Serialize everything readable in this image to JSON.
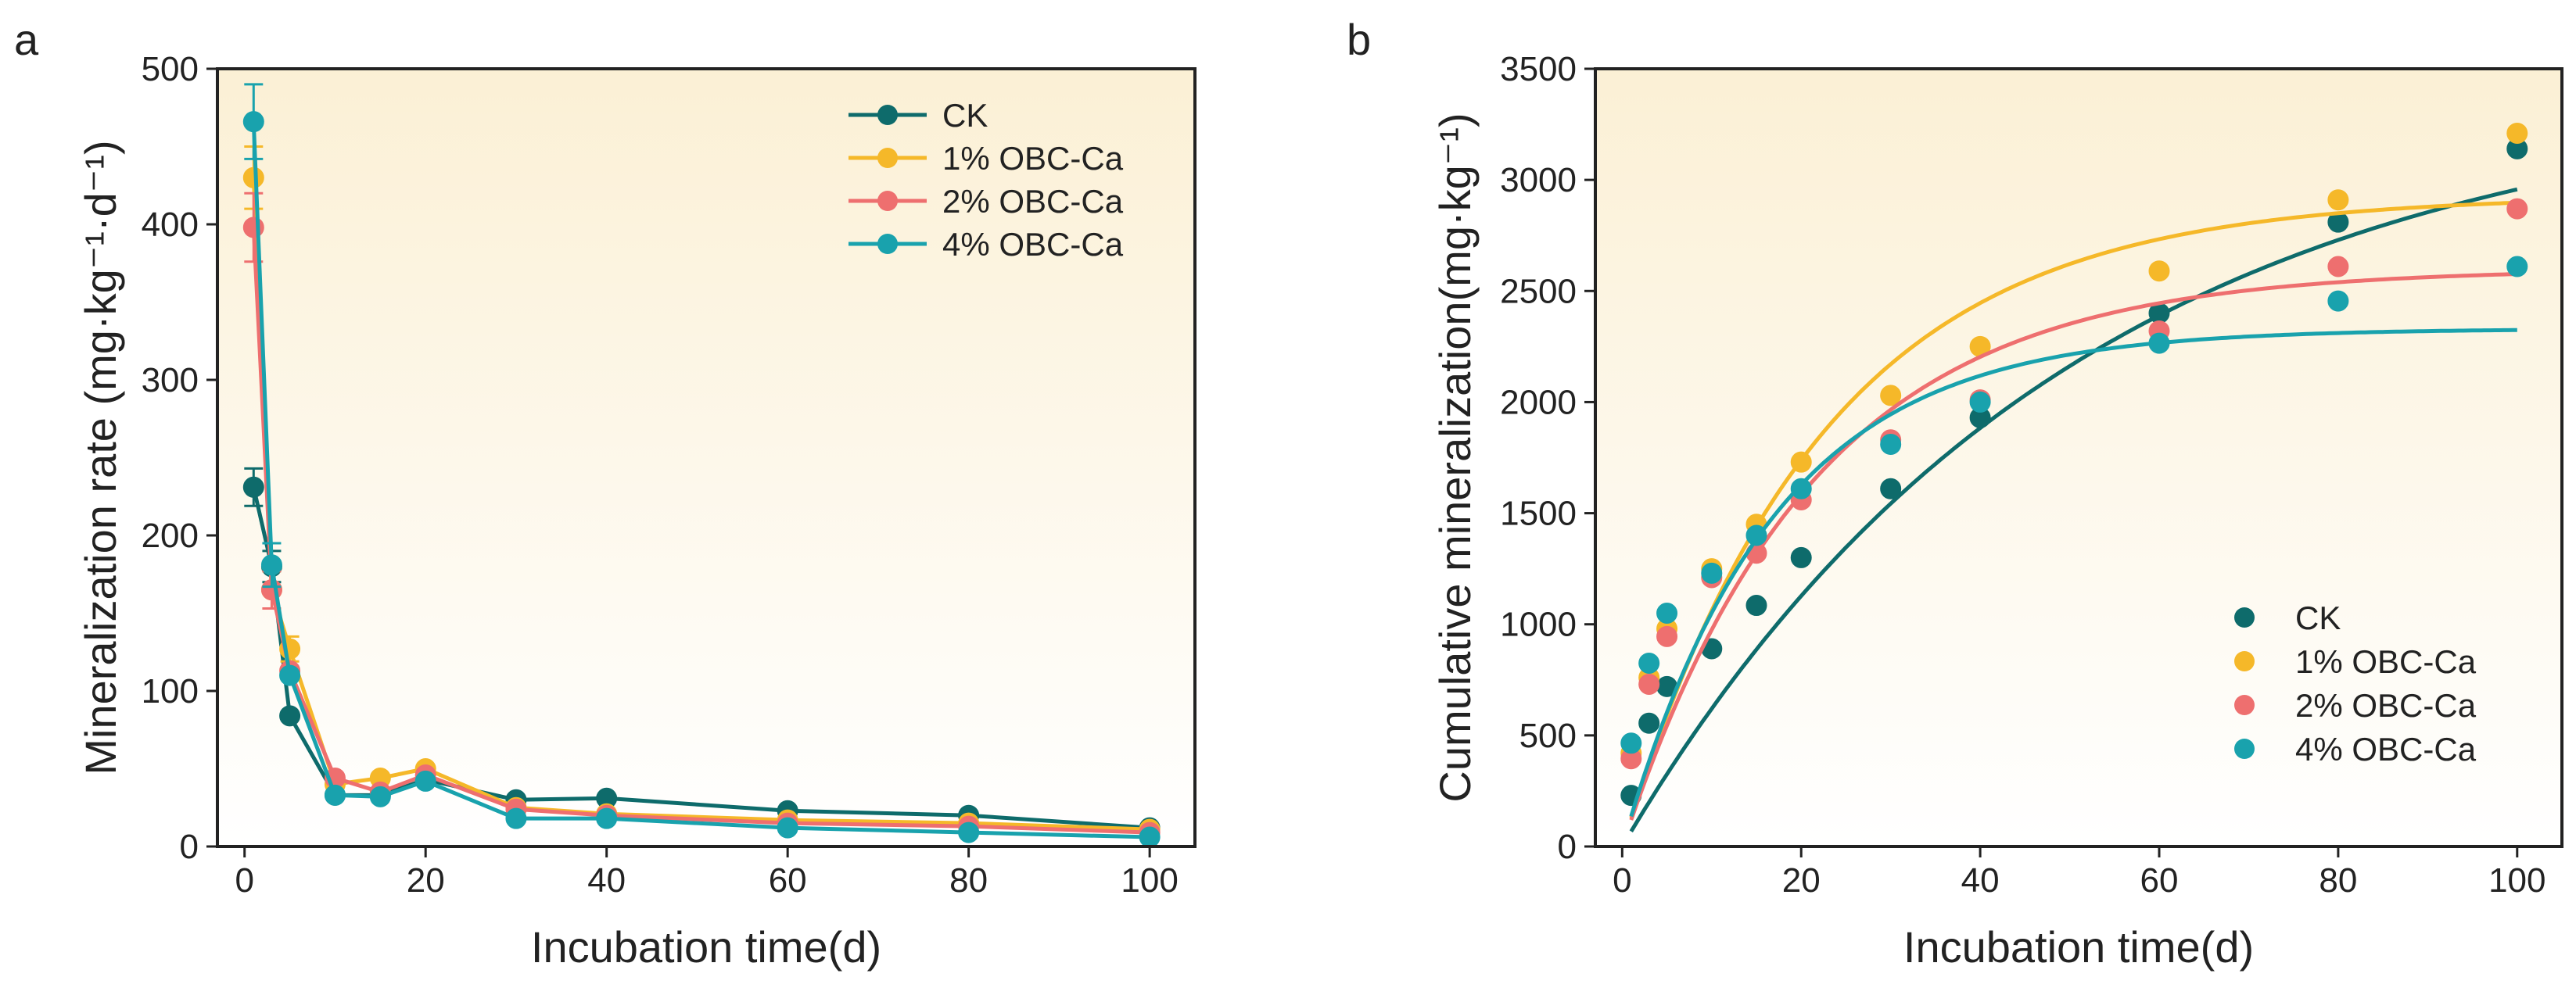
{
  "colors": {
    "CK": "#0e6b6b",
    "OBC1": "#f5b829",
    "OBC2": "#ee6f6f",
    "OBC4": "#19a2ad",
    "axis": "#222222",
    "bg_top": "#fbf0d5",
    "bg_bottom": "#ffffff"
  },
  "chart_data": [
    {
      "panel_label": "a",
      "type": "line",
      "title": "",
      "xlabel": "Incubation time(d)",
      "ylabel": "Mineralization rate (mg·kg⁻¹·d⁻¹)",
      "xlim": [
        -3,
        105
      ],
      "ylim": [
        0,
        500
      ],
      "xticks": [
        0,
        20,
        40,
        60,
        80,
        100
      ],
      "yticks": [
        0,
        100,
        200,
        300,
        400,
        500
      ],
      "legend_position": "top-right",
      "x": [
        1,
        3,
        5,
        10,
        15,
        20,
        30,
        40,
        60,
        80,
        100
      ],
      "series": [
        {
          "name": "CK",
          "color_key": "CK",
          "values": [
            231,
            180,
            84,
            33,
            33,
            43,
            30,
            31,
            23,
            20,
            12
          ],
          "error": [
            12,
            10,
            0,
            0,
            0,
            0,
            0,
            0,
            0,
            0,
            0
          ]
        },
        {
          "name": "1% OBC-Ca",
          "color_key": "OBC1",
          "values": [
            430,
            165,
            127,
            40,
            44,
            50,
            25,
            21,
            17,
            15,
            11
          ],
          "error": [
            20,
            12,
            8,
            0,
            0,
            0,
            0,
            0,
            0,
            0,
            0
          ]
        },
        {
          "name": "2% OBC-Ca",
          "color_key": "OBC2",
          "values": [
            398,
            165,
            113,
            44,
            35,
            46,
            24,
            20,
            15,
            13,
            9
          ],
          "error": [
            22,
            12,
            0,
            0,
            0,
            0,
            0,
            0,
            0,
            0,
            0
          ]
        },
        {
          "name": "4% OBC-Ca",
          "color_key": "OBC4",
          "values": [
            466,
            181,
            110,
            33,
            32,
            42,
            18,
            18,
            12,
            9,
            6
          ],
          "error": [
            24,
            14,
            0,
            0,
            0,
            0,
            0,
            0,
            0,
            0,
            0
          ]
        }
      ]
    },
    {
      "panel_label": "b",
      "type": "scatter",
      "title": "",
      "xlabel": "Incubation time(d)",
      "ylabel": "Cumulative mineralization(mg·kg⁻¹)",
      "xlim": [
        -3,
        105
      ],
      "ylim": [
        0,
        3500
      ],
      "xticks": [
        0,
        20,
        40,
        60,
        80,
        100
      ],
      "yticks": [
        0,
        500,
        1000,
        1500,
        2000,
        2500,
        3000,
        3500
      ],
      "legend_position": "bottom-right",
      "x": [
        1,
        3,
        5,
        10,
        15,
        20,
        30,
        40,
        60,
        80,
        100
      ],
      "series": [
        {
          "name": "CK",
          "color_key": "CK",
          "values": [
            230,
            555,
            720,
            890,
            1085,
            1300,
            1610,
            1930,
            2400,
            2810,
            3140
          ],
          "fit": {
            "model": "first-order",
            "C0": 3420,
            "k": 0.02
          }
        },
        {
          "name": "1% OBC-Ca",
          "color_key": "OBC1",
          "values": [
            420,
            760,
            980,
            1250,
            1450,
            1730,
            2030,
            2250,
            2590,
            2910,
            3210
          ],
          "fit": {
            "model": "first-order",
            "C0": 2930,
            "k": 0.045
          }
        },
        {
          "name": "2% OBC-Ca",
          "color_key": "OBC2",
          "values": [
            395,
            730,
            945,
            1210,
            1320,
            1560,
            1830,
            2010,
            2320,
            2610,
            2870
          ],
          "fit": {
            "model": "first-order",
            "C0": 2600,
            "k": 0.047
          }
        },
        {
          "name": "4% OBC-Ca",
          "color_key": "OBC4",
          "values": [
            465,
            825,
            1050,
            1230,
            1400,
            1610,
            1810,
            2000,
            2265,
            2455,
            2610
          ],
          "fit": {
            "model": "first-order",
            "C0": 2330,
            "k": 0.06
          }
        }
      ]
    }
  ]
}
